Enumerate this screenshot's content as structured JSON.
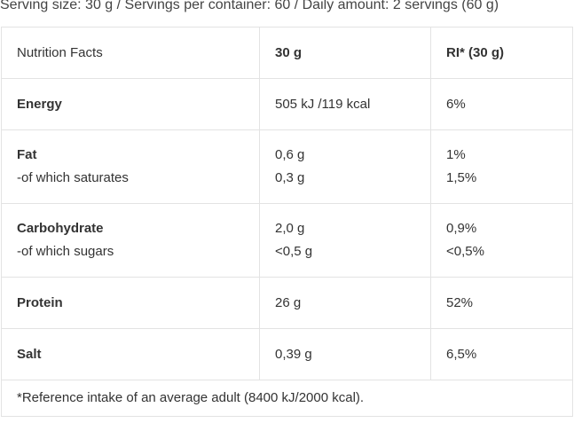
{
  "serving_info": "Serving size: 30 g / Servings per container: 60 / Daily amount: 2 servings (60 g)",
  "header": {
    "col1": "Nutrition Facts",
    "col2": "30 g",
    "col3": "RI* (30 g)"
  },
  "rows": [
    {
      "name": "Energy",
      "amount": "505 kJ /119 kcal",
      "ri": "6%"
    },
    {
      "name": "Fat",
      "sub": "-of which saturates",
      "amount": "0,6 g",
      "sub_amount": "0,3 g",
      "ri": "1%",
      "sub_ri": "1,5%"
    },
    {
      "name": "Carbohydrate",
      "sub": "-of which sugars",
      "amount": "2,0 g",
      "sub_amount": "<0,5 g",
      "ri": "0,9%",
      "sub_ri": "<0,5%"
    },
    {
      "name": "Protein",
      "amount": "26 g",
      "ri": "52%"
    },
    {
      "name": "Salt",
      "amount": "0,39 g",
      "ri": "6,5%"
    }
  ],
  "footnote": "*Reference intake of an average adult (8400 kJ/2000 kcal)."
}
